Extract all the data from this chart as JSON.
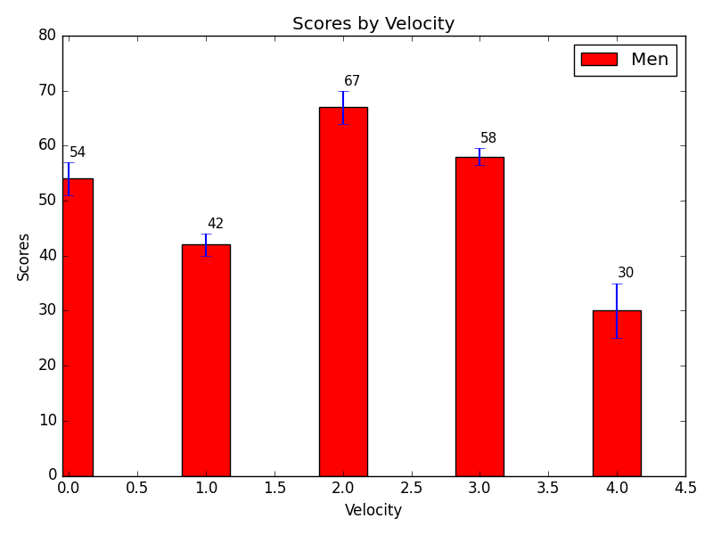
{
  "x_positions": [
    0.0,
    1.0,
    2.0,
    3.0,
    4.0
  ],
  "values": [
    54,
    42,
    67,
    58,
    30
  ],
  "errors": [
    3,
    2,
    3,
    1.5,
    5
  ],
  "bar_color": "red",
  "bar_width": 0.35,
  "title": "Scores by Velocity",
  "xlabel": "Velocity",
  "ylabel": "Scores",
  "ylim": [
    0,
    80
  ],
  "xlim": [
    -0.05,
    4.5
  ],
  "xticks": [
    0.0,
    0.5,
    1.0,
    1.5,
    2.0,
    2.5,
    3.0,
    3.5,
    4.0,
    4.5
  ],
  "yticks": [
    0,
    10,
    20,
    30,
    40,
    50,
    60,
    70,
    80
  ],
  "legend_label": "Men",
  "error_color": "blue",
  "error_capsize": 4,
  "figsize": [
    8.0,
    6.0
  ],
  "dpi": 100,
  "style": "classic"
}
